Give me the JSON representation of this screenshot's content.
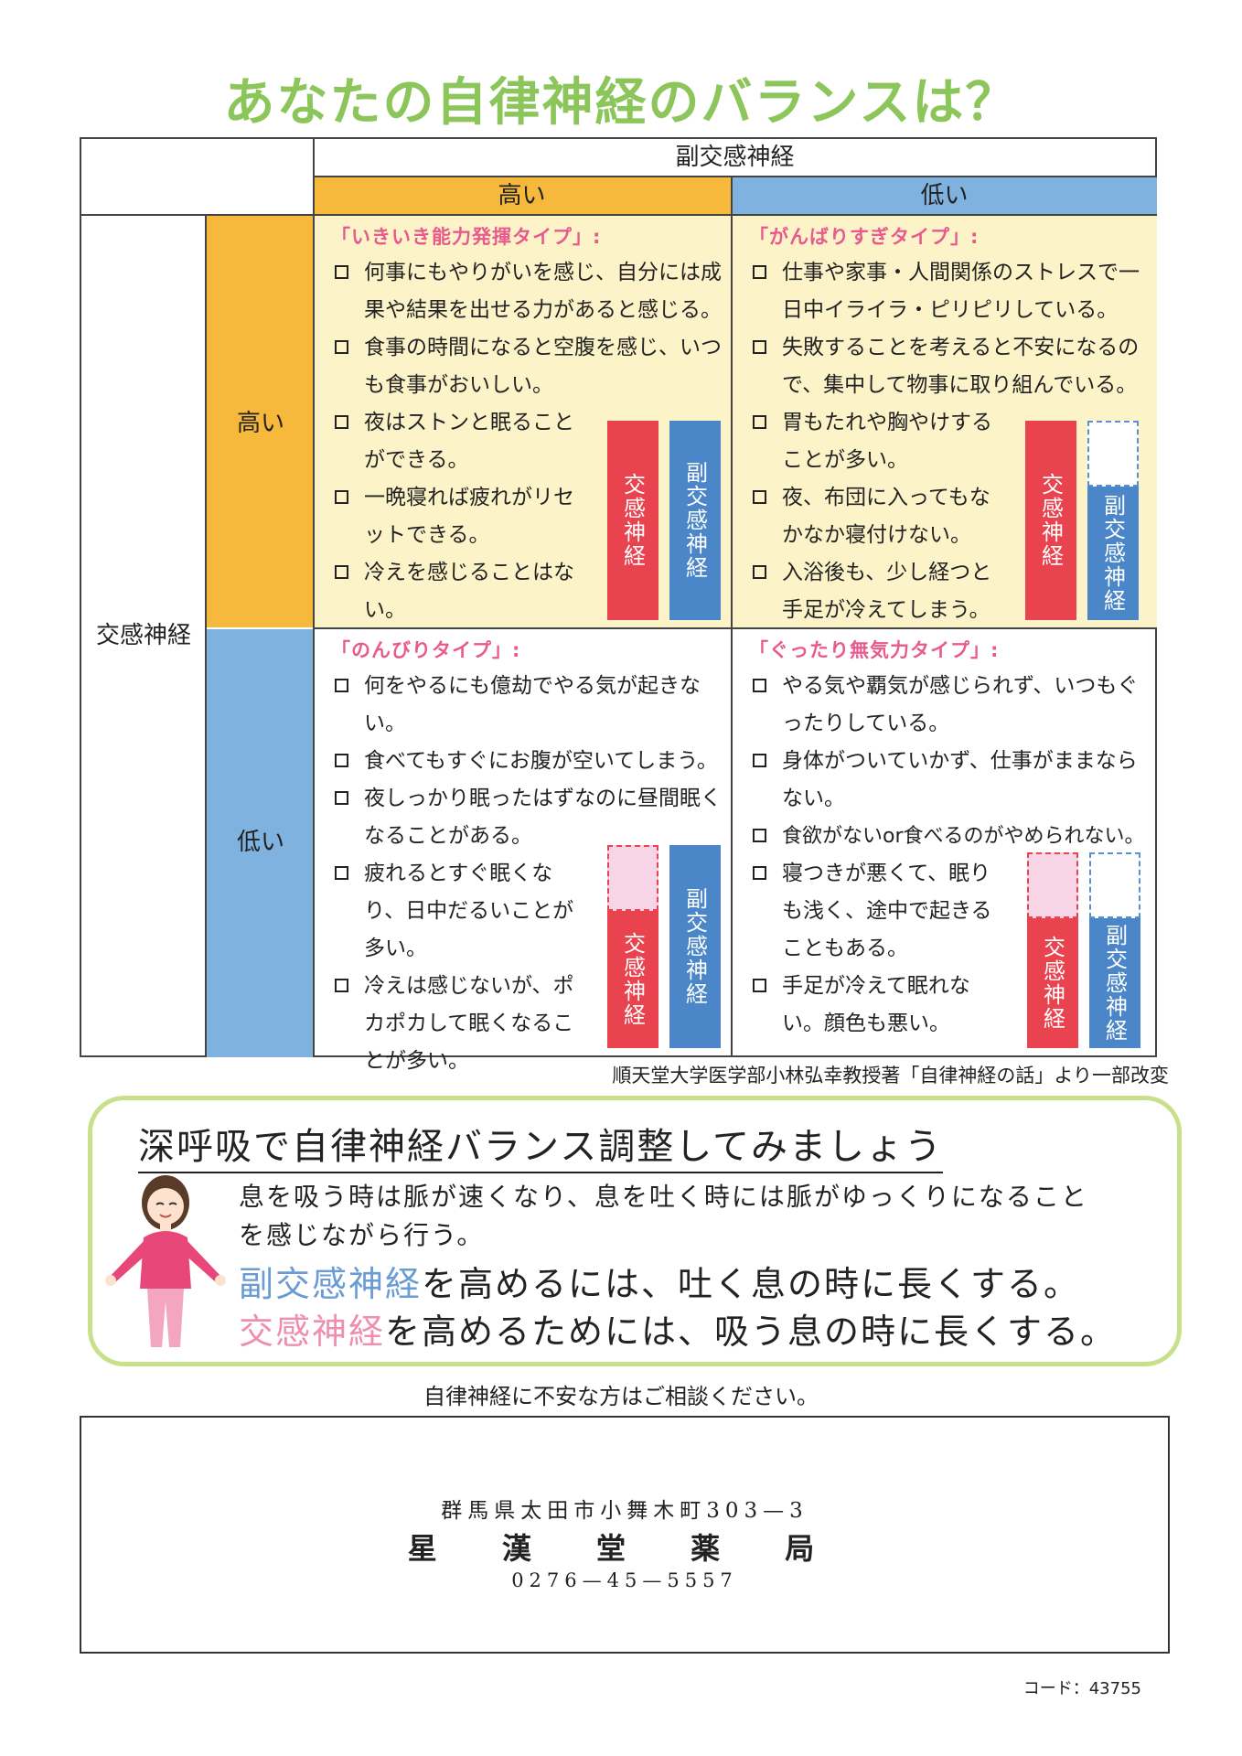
{
  "title": "あなたの自律神経のバランスは？",
  "table": {
    "col_group_label": "副交感神経",
    "col_high": "高い",
    "col_low": "低い",
    "row_group_label": "交感神経",
    "row_high": "高い",
    "row_low": "低い",
    "colors": {
      "high_band": "#f6b93b",
      "low_band": "#7fb2de",
      "top_cell_bg": "#fdf3c8",
      "bottom_cell_bg": "#ffffff"
    },
    "cells": {
      "high_high": {
        "title": "「いきいき能力発揮タイプ」:",
        "items": [
          "何事にもやりがいを感じ、自分には成果や結果を出せる力があると感じる。",
          "食事の時間になると空腹を感じ、いつも食事がおいしい。",
          "夜はストンと眠ることができる。",
          "一晩寝れば疲れがリセットできる。",
          "冷えを感じることはない。"
        ],
        "bar_left": "交感神経",
        "bar_right": "副交感神経"
      },
      "high_low": {
        "title": "「がんばりすぎタイプ」:",
        "items": [
          "仕事や家事・人間関係のストレスで一日中イライラ・ピリピリしている。",
          "失敗することを考えると不安になるので、集中して物事に取り組んでいる。",
          "胃もたれや胸やけすることが多い。",
          "夜、布団に入ってもなかなか寝付けない。",
          "入浴後も、少し経つと手足が冷えてしまう。"
        ],
        "bar_left": "交感神経",
        "bar_right": "副交感神経"
      },
      "low_high": {
        "title": "「のんびりタイプ」:",
        "items": [
          "何をやるにも億劫でやる気が起きない。",
          "食べてもすぐにお腹が空いてしまう。",
          "夜しっかり眠ったはずなのに昼間眠くなることがある。",
          "疲れるとすぐ眠くなり、日中だるいことが多い。",
          "冷えは感じないが、ポカポカして眠くなることが多い。"
        ],
        "bar_left": "交感神経",
        "bar_right": "副交感神経"
      },
      "low_low": {
        "title": "「ぐったり無気力タイプ」:",
        "items": [
          "やる気や覇気が感じられず、いつもぐったりしている。",
          "身体がついていかず、仕事がままならない。",
          "食欲がないor食べるのがやめられない。",
          "寝つきが悪くて、眠りも浅く、途中で起きることもある。",
          "手足が冷えて眠れない。顔色も悪い。"
        ],
        "bar_left": "交感神経",
        "bar_right": "副交感神経"
      }
    }
  },
  "citation": "順天堂大学医学部小林弘幸教授著「自律神経の話」より一部改変",
  "breathing": {
    "heading": "深呼吸で自律神経バランス調整してみましょう",
    "line1": "息を吸う時は脈が速くなり、息を吐く時には脈がゆっくりになること",
    "line2": "を感じながら行う。",
    "line3_highlight": "副交感神経",
    "line3_rest": "を高めるには、吐く息の時に長くする。",
    "line4_highlight": "交感神経",
    "line4_rest": "を高めるためには、吸う息の時に長くする。",
    "border_color": "#c9e08a"
  },
  "consult": "自律神経に不安な方はご相談ください。",
  "pharmacy": {
    "address": "群馬県太田市小舞木町303—3",
    "name": "星 漢 堂 薬 局",
    "phone": "0276—45—5557"
  },
  "code": "コード：43755"
}
